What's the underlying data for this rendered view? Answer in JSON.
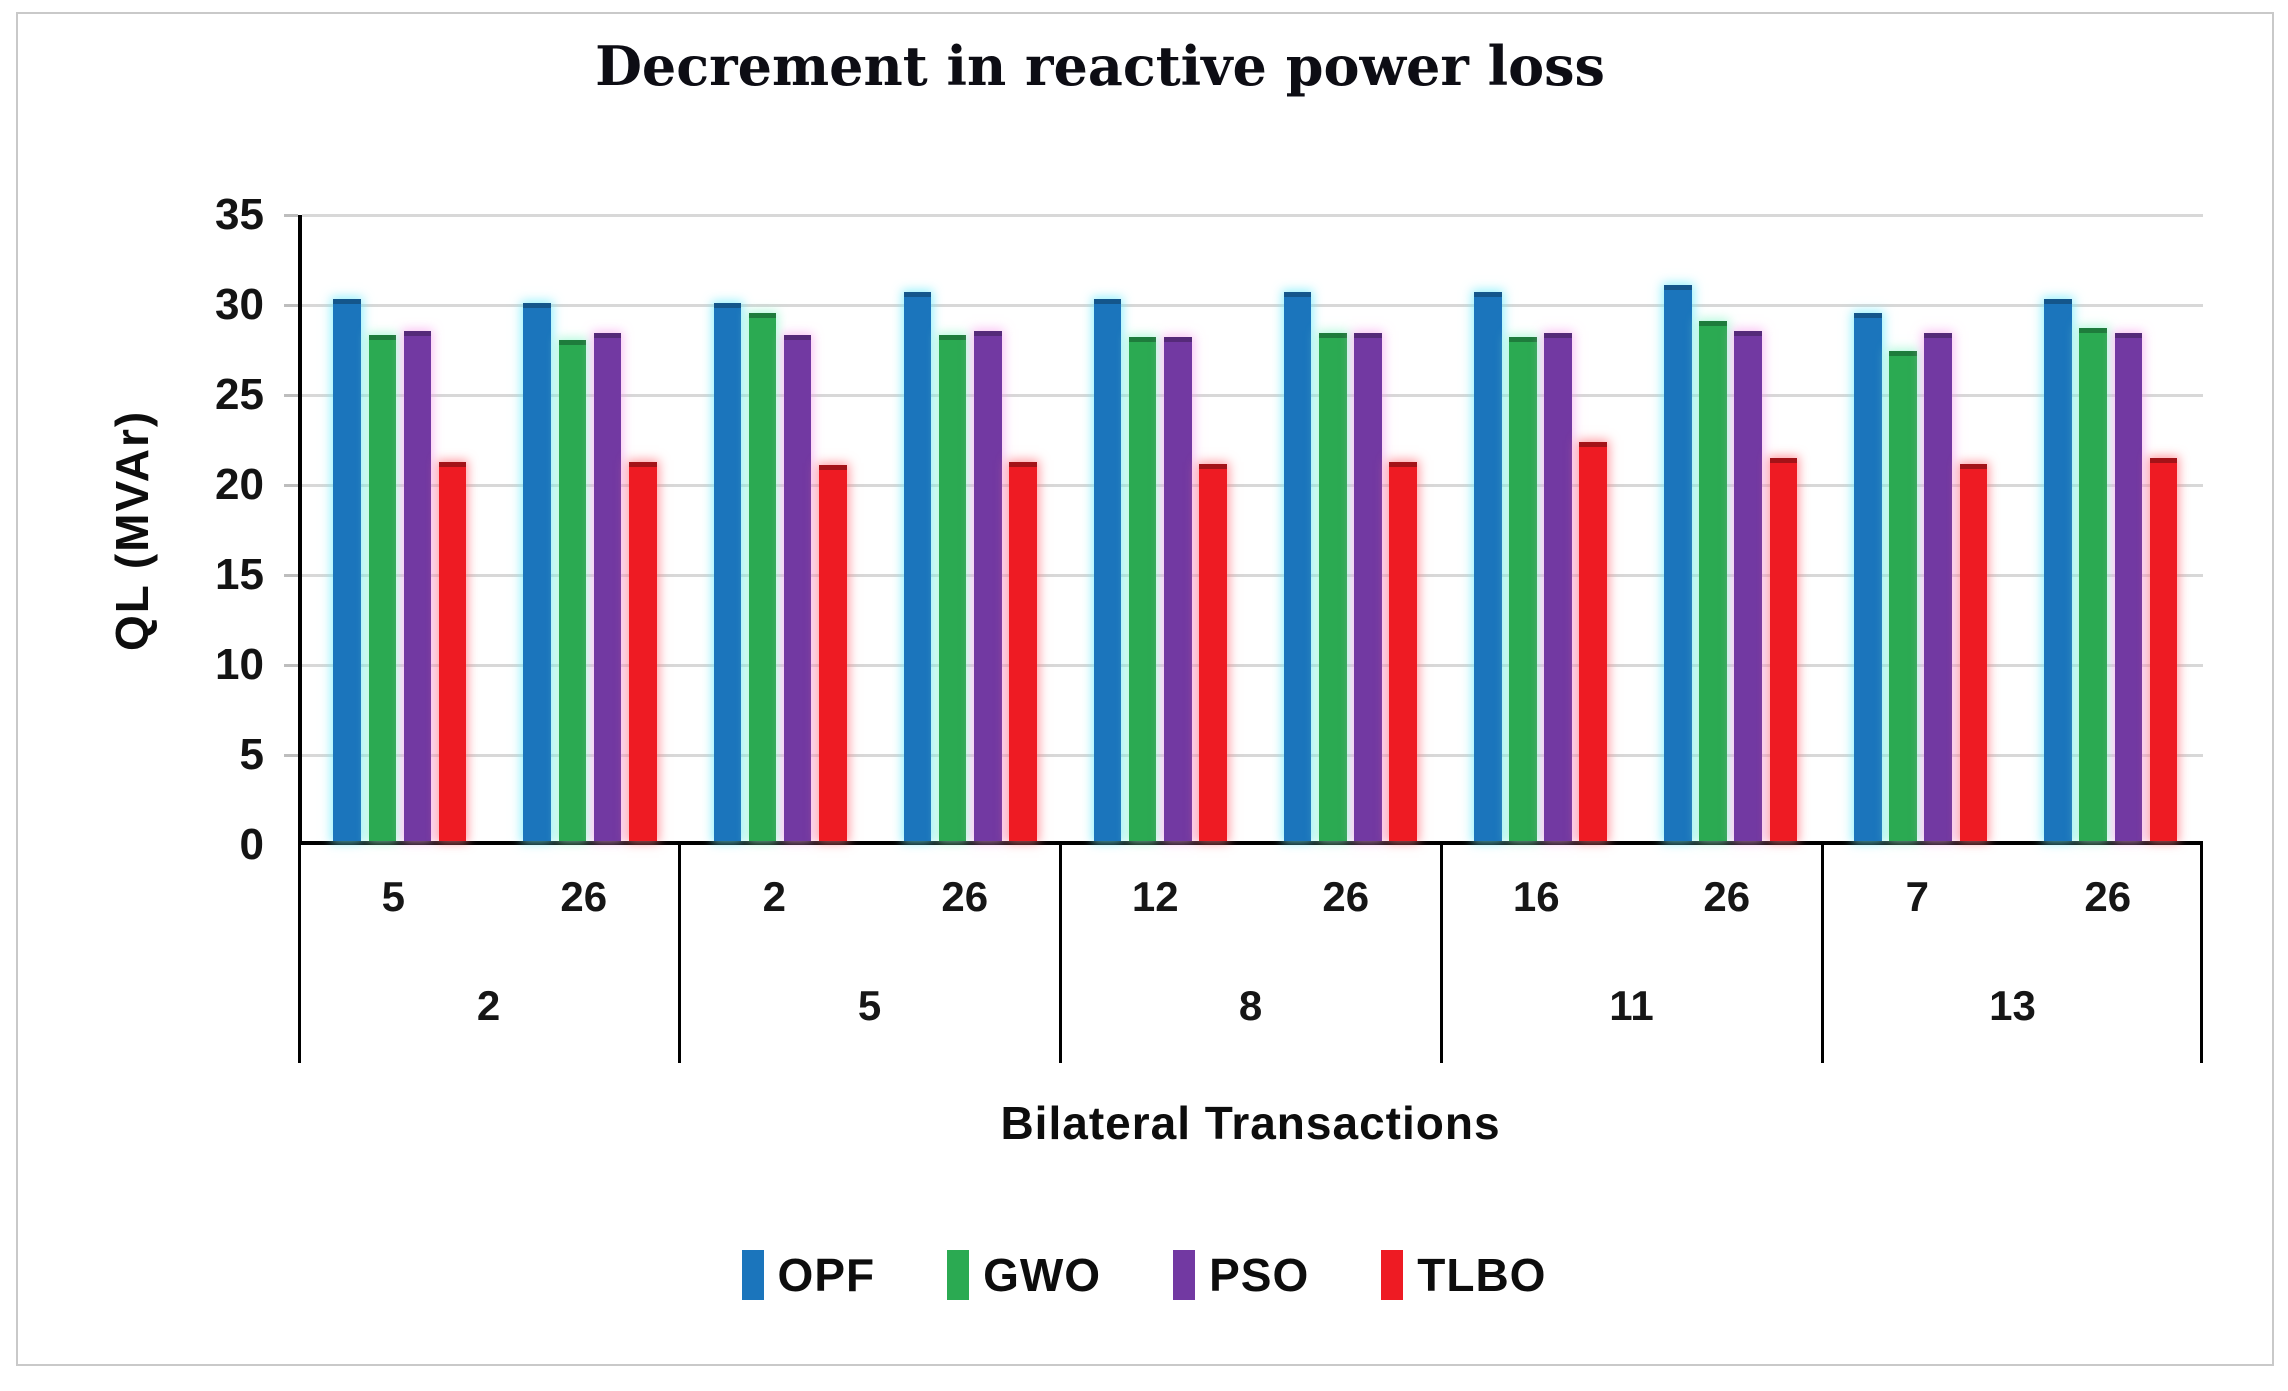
{
  "figure": {
    "border_color": "#c9c9c9",
    "background": "#ffffff"
  },
  "chart_data": {
    "type": "bar",
    "title": "Decrement in reactive power loss",
    "xlabel": "Bilateral Transactions",
    "ylabel": "QL (MVAr)",
    "ylim": [
      0,
      35
    ],
    "yticks": [
      0,
      5,
      10,
      15,
      20,
      25,
      30,
      35
    ],
    "grid": true,
    "gridline_color": "#d8d8d8",
    "legend_position": "bottom",
    "x_sublabels": [
      "5",
      "26",
      "2",
      "26",
      "12",
      "26",
      "16",
      "26",
      "7",
      "26"
    ],
    "x_sections": [
      {
        "label": "2",
        "sublabels": [
          "5",
          "26"
        ]
      },
      {
        "label": "5",
        "sublabels": [
          "2",
          "26"
        ]
      },
      {
        "label": "8",
        "sublabels": [
          "12",
          "26"
        ]
      },
      {
        "label": "11",
        "sublabels": [
          "16",
          "26"
        ]
      },
      {
        "label": "13",
        "sublabels": [
          "7",
          "26"
        ]
      }
    ],
    "series": [
      {
        "name": "OPF",
        "color": "#1b75bc",
        "cap_color": "#14568b",
        "glow": "rgba(110,235,250,0.75)",
        "values": [
          30.3,
          30.1,
          30.1,
          30.7,
          30.3,
          30.7,
          30.7,
          31.1,
          29.5,
          30.3
        ]
      },
      {
        "name": "GWO",
        "color": "#2baa52",
        "cap_color": "#1e7c3c",
        "glow": "rgba(150,245,205,0.75)",
        "values": [
          28.3,
          28.0,
          29.5,
          28.3,
          28.2,
          28.4,
          28.2,
          29.1,
          27.4,
          28.7
        ]
      },
      {
        "name": "PSO",
        "color": "#7239a2",
        "cap_color": "#552a79",
        "glow": "rgba(246,165,238,0.7)",
        "values": [
          28.5,
          28.4,
          28.3,
          28.5,
          28.2,
          28.4,
          28.4,
          28.5,
          28.4,
          28.4
        ]
      },
      {
        "name": "TLBO",
        "color": "#ee1b23",
        "cap_color": "#a31318",
        "glow": "rgba(255,120,130,0.75)",
        "values": [
          21.2,
          21.2,
          21.0,
          21.2,
          21.1,
          21.2,
          22.3,
          21.4,
          21.1,
          21.4
        ]
      }
    ]
  },
  "legend": {
    "items": [
      {
        "label": "OPF",
        "color": "#1b75bc"
      },
      {
        "label": "GWO",
        "color": "#2baa52"
      },
      {
        "label": "PSO",
        "color": "#7239a2"
      },
      {
        "label": "TLBO",
        "color": "#ee1b23"
      }
    ]
  }
}
